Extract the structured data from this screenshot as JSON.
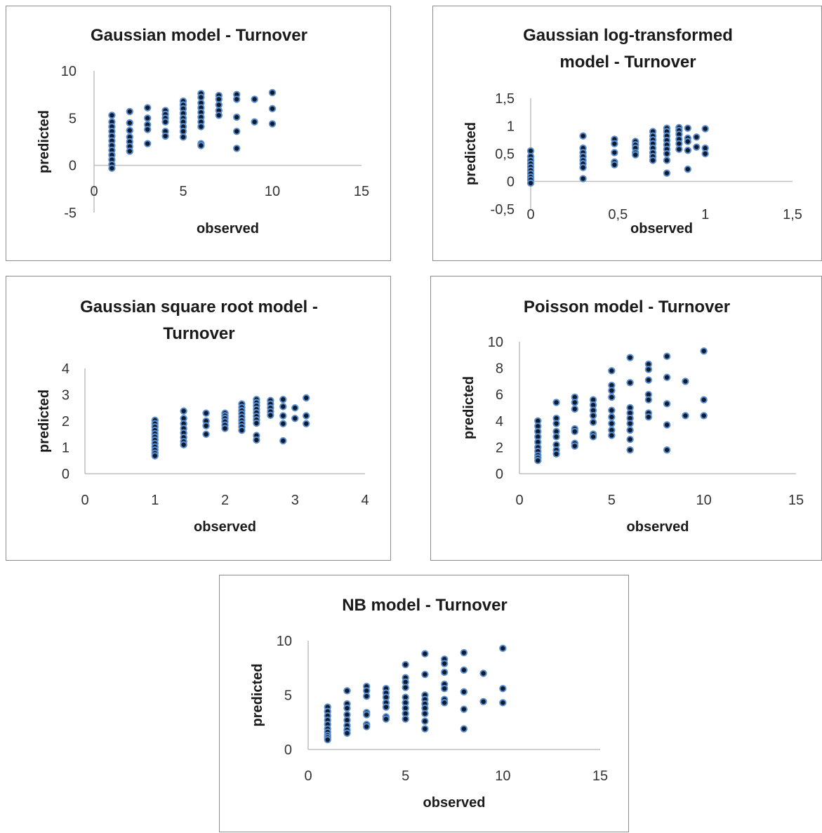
{
  "colors": {
    "marker_fill": "#0d1a2e",
    "marker_edge": "#5b8fd0",
    "axis": "#bfbfbf",
    "panel_border": "#8c8c8c"
  },
  "chart_data": [
    {
      "type": "scatter",
      "title_lines": [
        "Gaussian model - Turnover"
      ],
      "xlabel": "observed",
      "ylabel": "predicted",
      "xlim": [
        0,
        15
      ],
      "ylim": [
        -5,
        10
      ],
      "xticks": [
        0,
        5,
        10,
        15
      ],
      "yticks": [
        -5,
        0,
        5,
        10
      ],
      "xticklabels": [
        "0",
        "5",
        "10",
        "15"
      ],
      "yticklabels": [
        "-5",
        "0",
        "5",
        "10"
      ],
      "points": [
        [
          1,
          5.3
        ],
        [
          1,
          4.6
        ],
        [
          1,
          4.1
        ],
        [
          1,
          3.6
        ],
        [
          1,
          3.1
        ],
        [
          1,
          2.6
        ],
        [
          1,
          2.1
        ],
        [
          1,
          1.6
        ],
        [
          1,
          1.1
        ],
        [
          1,
          0.6
        ],
        [
          1,
          0.1
        ],
        [
          1,
          -0.3
        ],
        [
          2,
          5.7
        ],
        [
          2,
          4.5
        ],
        [
          2,
          3.7
        ],
        [
          2,
          3.0
        ],
        [
          2,
          2.5
        ],
        [
          2,
          2.0
        ],
        [
          2,
          1.5
        ],
        [
          3,
          6.1
        ],
        [
          3,
          5.0
        ],
        [
          3,
          4.3
        ],
        [
          3,
          3.8
        ],
        [
          3,
          2.3
        ],
        [
          4,
          5.8
        ],
        [
          4,
          5.4
        ],
        [
          4,
          5.0
        ],
        [
          4,
          4.6
        ],
        [
          4,
          3.6
        ],
        [
          4,
          3.1
        ],
        [
          5,
          6.8
        ],
        [
          5,
          6.4
        ],
        [
          5,
          6.0
        ],
        [
          5,
          5.5
        ],
        [
          5,
          5.0
        ],
        [
          5,
          4.6
        ],
        [
          5,
          4.1
        ],
        [
          5,
          3.6
        ],
        [
          5,
          3.0
        ],
        [
          6,
          7.6
        ],
        [
          6,
          7.2
        ],
        [
          6,
          6.6
        ],
        [
          6,
          6.1
        ],
        [
          6,
          5.6
        ],
        [
          6,
          5.1
        ],
        [
          6,
          4.6
        ],
        [
          6,
          4.1
        ],
        [
          6,
          2.3
        ],
        [
          6,
          2.1
        ],
        [
          7,
          7.4
        ],
        [
          7,
          7.0
        ],
        [
          7,
          6.4
        ],
        [
          7,
          5.8
        ],
        [
          7,
          5.3
        ],
        [
          8,
          7.5
        ],
        [
          8,
          7.0
        ],
        [
          8,
          5.1
        ],
        [
          8,
          3.6
        ],
        [
          8,
          1.8
        ],
        [
          9,
          7.0
        ],
        [
          9,
          4.6
        ],
        [
          10,
          7.7
        ],
        [
          10,
          6.0
        ],
        [
          10,
          4.4
        ]
      ]
    },
    {
      "type": "scatter",
      "title_lines": [
        "Gaussian  log-transformed",
        "model - Turnover"
      ],
      "xlabel": "observed",
      "ylabel": "predicted",
      "xlim": [
        0,
        1.5
      ],
      "ylim": [
        -0.5,
        1.5
      ],
      "xticks": [
        0,
        0.5,
        1,
        1.5
      ],
      "yticks": [
        -0.5,
        0,
        0.5,
        1,
        1.5
      ],
      "xticklabels": [
        "0",
        "0,5",
        "1",
        "1,5"
      ],
      "yticklabels": [
        "-0,5",
        "0",
        "0,5",
        "1",
        "1,5"
      ],
      "points": [
        [
          0,
          0.55
        ],
        [
          0,
          0.45
        ],
        [
          0,
          0.38
        ],
        [
          0,
          0.32
        ],
        [
          0,
          0.26
        ],
        [
          0,
          0.2
        ],
        [
          0,
          0.14
        ],
        [
          0,
          0.08
        ],
        [
          0,
          0.03
        ],
        [
          0,
          -0.03
        ],
        [
          0.3,
          0.82
        ],
        [
          0.3,
          0.6
        ],
        [
          0.3,
          0.52
        ],
        [
          0.3,
          0.45
        ],
        [
          0.3,
          0.38
        ],
        [
          0.3,
          0.32
        ],
        [
          0.3,
          0.25
        ],
        [
          0.3,
          0.05
        ],
        [
          0.48,
          0.76
        ],
        [
          0.48,
          0.68
        ],
        [
          0.48,
          0.52
        ],
        [
          0.48,
          0.35
        ],
        [
          0.48,
          0.3
        ],
        [
          0.6,
          0.72
        ],
        [
          0.6,
          0.66
        ],
        [
          0.6,
          0.6
        ],
        [
          0.6,
          0.52
        ],
        [
          0.6,
          0.48
        ],
        [
          0.7,
          0.9
        ],
        [
          0.7,
          0.82
        ],
        [
          0.7,
          0.75
        ],
        [
          0.7,
          0.68
        ],
        [
          0.7,
          0.6
        ],
        [
          0.7,
          0.52
        ],
        [
          0.7,
          0.45
        ],
        [
          0.7,
          0.38
        ],
        [
          0.78,
          0.96
        ],
        [
          0.78,
          0.9
        ],
        [
          0.78,
          0.82
        ],
        [
          0.78,
          0.74
        ],
        [
          0.78,
          0.66
        ],
        [
          0.78,
          0.58
        ],
        [
          0.78,
          0.5
        ],
        [
          0.78,
          0.38
        ],
        [
          0.78,
          0.15
        ],
        [
          0.85,
          0.97
        ],
        [
          0.85,
          0.92
        ],
        [
          0.85,
          0.85
        ],
        [
          0.85,
          0.76
        ],
        [
          0.85,
          0.68
        ],
        [
          0.85,
          0.58
        ],
        [
          0.9,
          0.96
        ],
        [
          0.9,
          0.78
        ],
        [
          0.9,
          0.72
        ],
        [
          0.9,
          0.56
        ],
        [
          0.9,
          0.22
        ],
        [
          0.95,
          0.8
        ],
        [
          0.95,
          0.62
        ],
        [
          1,
          0.95
        ],
        [
          1,
          0.6
        ],
        [
          1,
          0.5
        ]
      ]
    },
    {
      "type": "scatter",
      "title_lines": [
        "Gaussian square root model -",
        "Turnover"
      ],
      "xlabel": "observed",
      "ylabel": "predicted",
      "xlim": [
        0,
        4
      ],
      "ylim": [
        0,
        4
      ],
      "xticks": [
        0,
        1,
        2,
        3,
        4
      ],
      "yticks": [
        0,
        1,
        2,
        3,
        4
      ],
      "xticklabels": [
        "0",
        "1",
        "2",
        "3",
        "4"
      ],
      "yticklabels": [
        "0",
        "1",
        "2",
        "3",
        "4"
      ],
      "points": [
        [
          1,
          2.03
        ],
        [
          1,
          1.9
        ],
        [
          1,
          1.78
        ],
        [
          1,
          1.65
        ],
        [
          1,
          1.52
        ],
        [
          1,
          1.4
        ],
        [
          1,
          1.28
        ],
        [
          1,
          1.15
        ],
        [
          1,
          1.02
        ],
        [
          1,
          0.9
        ],
        [
          1,
          0.78
        ],
        [
          1,
          0.68
        ],
        [
          1.41,
          2.38
        ],
        [
          1.41,
          2.1
        ],
        [
          1.41,
          1.9
        ],
        [
          1.41,
          1.72
        ],
        [
          1.41,
          1.55
        ],
        [
          1.41,
          1.38
        ],
        [
          1.41,
          1.22
        ],
        [
          1.41,
          1.1
        ],
        [
          1.73,
          2.3
        ],
        [
          1.73,
          2.0
        ],
        [
          1.73,
          1.82
        ],
        [
          1.73,
          1.5
        ],
        [
          2,
          2.3
        ],
        [
          2,
          2.2
        ],
        [
          2,
          2.1
        ],
        [
          2,
          1.98
        ],
        [
          2,
          1.85
        ],
        [
          2,
          1.72
        ],
        [
          2.24,
          2.65
        ],
        [
          2.24,
          2.52
        ],
        [
          2.24,
          2.4
        ],
        [
          2.24,
          2.28
        ],
        [
          2.24,
          2.15
        ],
        [
          2.24,
          2.02
        ],
        [
          2.24,
          1.9
        ],
        [
          2.24,
          1.78
        ],
        [
          2.24,
          1.65
        ],
        [
          2.45,
          2.82
        ],
        [
          2.45,
          2.7
        ],
        [
          2.45,
          2.58
        ],
        [
          2.45,
          2.45
        ],
        [
          2.45,
          2.32
        ],
        [
          2.45,
          2.18
        ],
        [
          2.45,
          2.05
        ],
        [
          2.45,
          1.92
        ],
        [
          2.45,
          1.45
        ],
        [
          2.45,
          1.28
        ],
        [
          2.65,
          2.78
        ],
        [
          2.65,
          2.65
        ],
        [
          2.65,
          2.5
        ],
        [
          2.65,
          2.36
        ],
        [
          2.65,
          2.22
        ],
        [
          2.83,
          2.82
        ],
        [
          2.83,
          2.55
        ],
        [
          2.83,
          2.2
        ],
        [
          2.83,
          1.9
        ],
        [
          2.83,
          1.25
        ],
        [
          3,
          2.5
        ],
        [
          3,
          2.1
        ],
        [
          3.16,
          2.88
        ],
        [
          3.16,
          2.2
        ],
        [
          3.16,
          1.9
        ]
      ]
    },
    {
      "type": "scatter",
      "title_lines": [
        "Poisson model - Turnover"
      ],
      "xlabel": "observed",
      "ylabel": "predicted",
      "xlim": [
        0,
        15
      ],
      "ylim": [
        0,
        10
      ],
      "xticks": [
        0,
        5,
        10,
        15
      ],
      "yticks": [
        0,
        2,
        4,
        6,
        8,
        10
      ],
      "xticklabels": [
        "0",
        "5",
        "10",
        "15"
      ],
      "yticklabels": [
        "0",
        "2",
        "4",
        "6",
        "8",
        "10"
      ],
      "points": [
        [
          1,
          4.0
        ],
        [
          1,
          3.6
        ],
        [
          1,
          3.2
        ],
        [
          1,
          2.8
        ],
        [
          1,
          2.4
        ],
        [
          1,
          2.0
        ],
        [
          1,
          1.7
        ],
        [
          1,
          1.4
        ],
        [
          1,
          1.2
        ],
        [
          1,
          1.0
        ],
        [
          2,
          5.4
        ],
        [
          2,
          4.2
        ],
        [
          2,
          3.8
        ],
        [
          2,
          3.2
        ],
        [
          2,
          2.8
        ],
        [
          2,
          2.2
        ],
        [
          2,
          1.8
        ],
        [
          2,
          1.5
        ],
        [
          3,
          5.8
        ],
        [
          3,
          5.4
        ],
        [
          3,
          4.9
        ],
        [
          3,
          3.4
        ],
        [
          3,
          3.2
        ],
        [
          3,
          2.3
        ],
        [
          3,
          2.1
        ],
        [
          4,
          5.6
        ],
        [
          4,
          5.2
        ],
        [
          4,
          4.8
        ],
        [
          4,
          4.4
        ],
        [
          4,
          3.9
        ],
        [
          4,
          3.0
        ],
        [
          4,
          2.8
        ],
        [
          5,
          7.8
        ],
        [
          5,
          6.7
        ],
        [
          5,
          6.3
        ],
        [
          5,
          5.8
        ],
        [
          5,
          4.8
        ],
        [
          5,
          4.3
        ],
        [
          5,
          3.8
        ],
        [
          5,
          3.3
        ],
        [
          5,
          2.9
        ],
        [
          6,
          8.8
        ],
        [
          6,
          6.9
        ],
        [
          6,
          5.0
        ],
        [
          6,
          4.6
        ],
        [
          6,
          4.2
        ],
        [
          6,
          3.8
        ],
        [
          6,
          3.3
        ],
        [
          6,
          2.6
        ],
        [
          6,
          1.8
        ],
        [
          7,
          8.3
        ],
        [
          7,
          7.9
        ],
        [
          7,
          7.1
        ],
        [
          7,
          6.0
        ],
        [
          7,
          5.6
        ],
        [
          7,
          4.6
        ],
        [
          7,
          4.3
        ],
        [
          8,
          8.9
        ],
        [
          8,
          7.3
        ],
        [
          8,
          5.3
        ],
        [
          8,
          3.7
        ],
        [
          8,
          1.8
        ],
        [
          9,
          7.0
        ],
        [
          9,
          4.4
        ],
        [
          10,
          9.3
        ],
        [
          10,
          5.6
        ],
        [
          10,
          4.4
        ]
      ]
    },
    {
      "type": "scatter",
      "title_lines": [
        "NB model - Turnover"
      ],
      "xlabel": "observed",
      "ylabel": "predicted",
      "xlim": [
        0,
        15
      ],
      "ylim": [
        0,
        10
      ],
      "xticks": [
        0,
        5,
        10,
        15
      ],
      "yticks": [
        0,
        5,
        10
      ],
      "xticklabels": [
        "0",
        "5",
        "10",
        "15"
      ],
      "yticklabels": [
        "0",
        "5",
        "10"
      ],
      "points": [
        [
          1,
          3.9
        ],
        [
          1,
          3.5
        ],
        [
          1,
          3.1
        ],
        [
          1,
          2.7
        ],
        [
          1,
          2.3
        ],
        [
          1,
          1.9
        ],
        [
          1,
          1.6
        ],
        [
          1,
          1.3
        ],
        [
          1,
          1.1
        ],
        [
          1,
          0.9
        ],
        [
          2,
          5.4
        ],
        [
          2,
          4.2
        ],
        [
          2,
          3.8
        ],
        [
          2,
          3.2
        ],
        [
          2,
          2.7
        ],
        [
          2,
          2.2
        ],
        [
          2,
          1.8
        ],
        [
          2,
          1.5
        ],
        [
          3,
          5.8
        ],
        [
          3,
          5.4
        ],
        [
          3,
          4.9
        ],
        [
          3,
          3.4
        ],
        [
          3,
          3.2
        ],
        [
          3,
          2.3
        ],
        [
          3,
          2.1
        ],
        [
          4,
          5.6
        ],
        [
          4,
          5.2
        ],
        [
          4,
          4.8
        ],
        [
          4,
          4.3
        ],
        [
          4,
          3.9
        ],
        [
          4,
          3.0
        ],
        [
          4,
          2.8
        ],
        [
          5,
          7.8
        ],
        [
          5,
          6.6
        ],
        [
          5,
          6.2
        ],
        [
          5,
          5.7
        ],
        [
          5,
          4.8
        ],
        [
          5,
          4.3
        ],
        [
          5,
          3.8
        ],
        [
          5,
          3.3
        ],
        [
          5,
          2.8
        ],
        [
          6,
          8.8
        ],
        [
          6,
          6.9
        ],
        [
          6,
          5.0
        ],
        [
          6,
          4.6
        ],
        [
          6,
          4.2
        ],
        [
          6,
          3.8
        ],
        [
          6,
          3.3
        ],
        [
          6,
          2.6
        ],
        [
          6,
          1.9
        ],
        [
          7,
          8.3
        ],
        [
          7,
          7.9
        ],
        [
          7,
          7.1
        ],
        [
          7,
          6.0
        ],
        [
          7,
          5.6
        ],
        [
          7,
          4.6
        ],
        [
          7,
          4.3
        ],
        [
          8,
          8.9
        ],
        [
          8,
          7.3
        ],
        [
          8,
          5.3
        ],
        [
          8,
          3.7
        ],
        [
          8,
          1.9
        ],
        [
          9,
          7.0
        ],
        [
          9,
          4.4
        ],
        [
          10,
          9.3
        ],
        [
          10,
          5.6
        ],
        [
          10,
          4.3
        ]
      ]
    }
  ]
}
